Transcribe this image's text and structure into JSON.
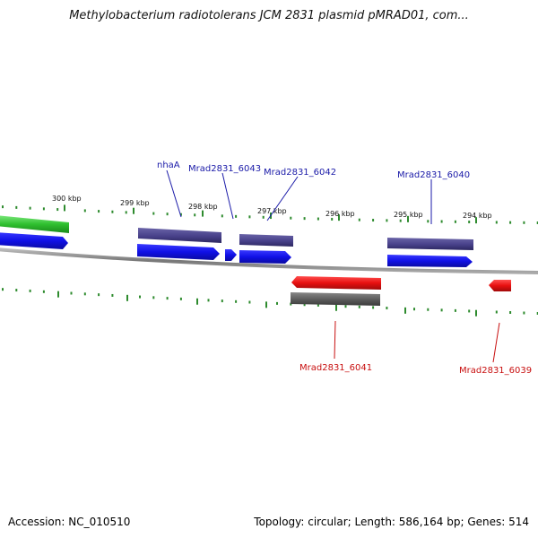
{
  "title": "Methylobacterium radiotolerans JCM 2831 plasmid pMRAD01, com...",
  "footer": {
    "accession": "Accession: NC_010510",
    "summary": "Topology: circular; Length: 586,164 bp; Genes: 514"
  },
  "colors": {
    "ticks": "#2e8b2e",
    "backbone": "#888888",
    "forward_label": "#1a1aa8",
    "reverse_label": "#c81010",
    "green_feature": "#3cc83c",
    "purple_feature": "#4a4488",
    "blue_feature": "#1010e0",
    "red_feature": "#e81010",
    "gray_feature": "#666666"
  },
  "tick_labels": [
    "300 kbp",
    "299 kbp",
    "298 kbp",
    "297 kbp",
    "296 kbp",
    "295 kbp",
    "294 kbp"
  ],
  "gene_labels": [
    {
      "text": "nhaA",
      "strand": "forward"
    },
    {
      "text": "Mrad2831_6043",
      "strand": "forward"
    },
    {
      "text": "Mrad2831_6042",
      "strand": "forward"
    },
    {
      "text": "Mrad2831_6040",
      "strand": "forward"
    },
    {
      "text": "Mrad2831_6041",
      "strand": "reverse"
    },
    {
      "text": "Mrad2831_6039",
      "strand": "reverse"
    }
  ]
}
